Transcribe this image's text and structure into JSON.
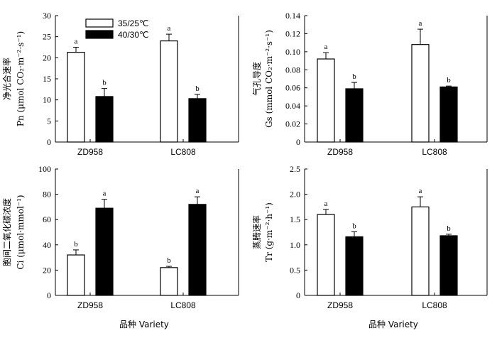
{
  "legend": [
    "35/25℃",
    "40/30℃"
  ],
  "x_titles": [
    "品种 Variety",
    "品种 Variety"
  ],
  "chart_data": [
    {
      "type": "bar",
      "categories": [
        "ZD958",
        "LC808"
      ],
      "ylabel": [
        "净光合速率",
        "Pn (μmol CO₂·m⁻²·s⁻¹)"
      ],
      "ylim": [
        0,
        30
      ],
      "yticks": [
        0,
        5,
        10,
        15,
        20,
        25,
        30
      ],
      "yticklabels": [
        "0",
        "5",
        "10",
        "15",
        "20",
        "25",
        "30"
      ],
      "series": [
        {
          "name": "35/25℃",
          "values": [
            21.3,
            24.0
          ],
          "errors": [
            1.2,
            1.6
          ],
          "letters": [
            "a",
            "a"
          ]
        },
        {
          "name": "40/30℃",
          "values": [
            10.8,
            10.3
          ],
          "errors": [
            1.9,
            1.0
          ],
          "letters": [
            "b",
            "b"
          ]
        }
      ]
    },
    {
      "type": "bar",
      "categories": [
        "ZD958",
        "LC808"
      ],
      "ylabel": [
        "气孔导度",
        "Gs (mmol CO₂·m⁻²·s⁻¹)"
      ],
      "ylim": [
        0,
        0.14
      ],
      "yticks": [
        0,
        0.02,
        0.04,
        0.06,
        0.08,
        0.1,
        0.12,
        0.14
      ],
      "yticklabels": [
        "0",
        "0.02",
        "0.04",
        "0.06",
        "0.08",
        "0.10",
        "0.12",
        "0.14"
      ],
      "series": [
        {
          "name": "35/25℃",
          "values": [
            0.092,
            0.108
          ],
          "errors": [
            0.007,
            0.017
          ],
          "letters": [
            "a",
            "a"
          ]
        },
        {
          "name": "40/30℃",
          "values": [
            0.059,
            0.061
          ],
          "errors": [
            0.007,
            0.001
          ],
          "letters": [
            "b",
            "b"
          ]
        }
      ]
    },
    {
      "type": "bar",
      "categories": [
        "ZD958",
        "LC808"
      ],
      "ylabel": [
        "胞间二氧化碳浓度",
        "Ci (μmol·mmol⁻¹)"
      ],
      "ylim": [
        0,
        100
      ],
      "yticks": [
        0,
        20,
        40,
        60,
        80,
        100
      ],
      "yticklabels": [
        "0",
        "20",
        "40",
        "60",
        "80",
        "100"
      ],
      "series": [
        {
          "name": "35/25℃",
          "values": [
            32,
            22
          ],
          "errors": [
            4,
            1
          ],
          "letters": [
            "b",
            "b"
          ]
        },
        {
          "name": "40/30℃",
          "values": [
            69,
            72
          ],
          "errors": [
            7,
            6
          ],
          "letters": [
            "a",
            "a"
          ]
        }
      ]
    },
    {
      "type": "bar",
      "categories": [
        "ZD958",
        "LC808"
      ],
      "ylabel": [
        "蒸腾速率",
        "Tr (g·m⁻²·h⁻¹)"
      ],
      "ylim": [
        0,
        2.5
      ],
      "yticks": [
        0,
        0.5,
        1.0,
        1.5,
        2.0,
        2.5
      ],
      "yticklabels": [
        "0",
        "0.5",
        "1.0",
        "1.5",
        "2.0",
        "2.5"
      ],
      "series": [
        {
          "name": "35/25℃",
          "values": [
            1.6,
            1.75
          ],
          "errors": [
            0.1,
            0.2
          ],
          "letters": [
            "a",
            "a"
          ]
        },
        {
          "name": "40/30℃",
          "values": [
            1.16,
            1.18
          ],
          "errors": [
            0.1,
            0.03
          ],
          "letters": [
            "b",
            "b"
          ]
        }
      ]
    }
  ]
}
